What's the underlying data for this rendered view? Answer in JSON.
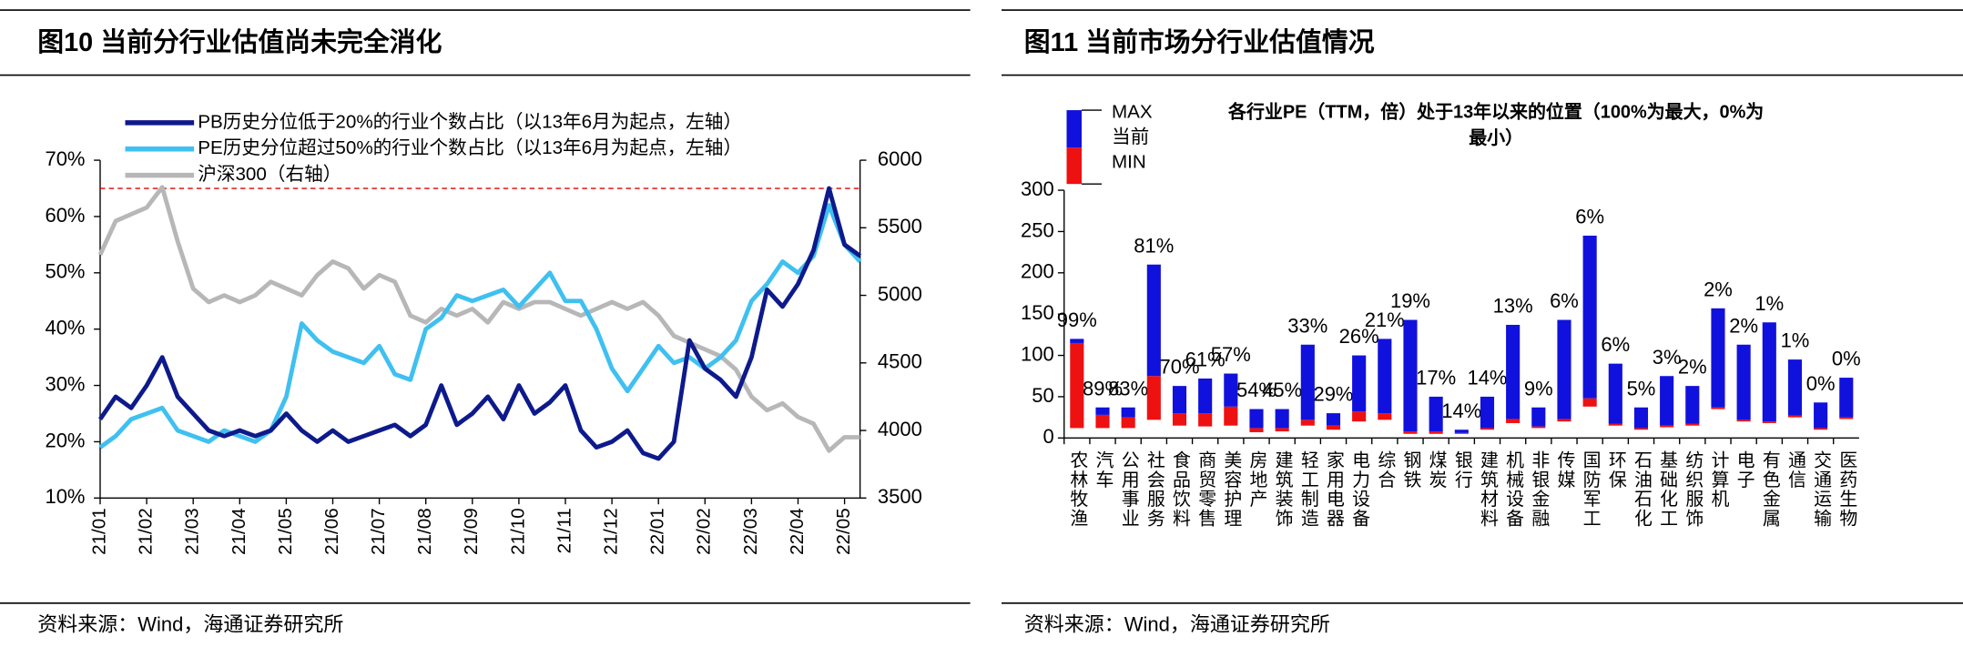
{
  "chart_data": [
    {
      "type": "line",
      "figure": "图10 当前分行业估值尚未完全消化",
      "source": "资料来源：Wind，海通证券研究所",
      "categories": [
        "21/01",
        null,
        null,
        "21/02",
        null,
        null,
        "21/03",
        null,
        null,
        "21/04",
        null,
        null,
        "21/05",
        null,
        null,
        "21/06",
        null,
        null,
        "21/07",
        null,
        null,
        "21/08",
        null,
        null,
        "21/09",
        null,
        null,
        "21/10",
        null,
        null,
        "21/11",
        null,
        null,
        "21/12",
        null,
        null,
        "22/01",
        null,
        null,
        "22/02",
        null,
        null,
        "22/03",
        null,
        null,
        "22/04",
        null,
        null,
        "22/05",
        null
      ],
      "series": [
        {
          "name": "PB历史分位低于20%的行业个数占比（以13年6月为起点，左轴）",
          "color": "#0d1a8c",
          "values": [
            24,
            28,
            26,
            30,
            35,
            28,
            25,
            22,
            21,
            22,
            21,
            22,
            25,
            22,
            20,
            22,
            20,
            21,
            22,
            23,
            21,
            23,
            30,
            23,
            25,
            28,
            24,
            30,
            25,
            27,
            30,
            22,
            19,
            20,
            22,
            18,
            17,
            20,
            38,
            33,
            31,
            28,
            35,
            47,
            44,
            48,
            54,
            65,
            55,
            53
          ]
        },
        {
          "name": "PE历史分位超过50%的行业个数占比（以13年6月为起点，左轴）",
          "color": "#3fc0f0",
          "values": [
            19,
            21,
            24,
            25,
            26,
            22,
            21,
            20,
            22,
            21,
            20,
            22,
            28,
            41,
            38,
            36,
            35,
            34,
            37,
            32,
            31,
            40,
            42,
            46,
            45,
            46,
            47,
            44,
            47,
            50,
            45,
            45,
            40,
            33,
            29,
            33,
            37,
            34,
            35,
            33,
            35,
            38,
            45,
            48,
            52,
            50,
            53,
            62,
            55,
            52
          ]
        },
        {
          "name": "沪深300（右轴）",
          "color": "#b7b7b7",
          "axis": "y2",
          "values": [
            5300,
            5550,
            5600,
            5650,
            5800,
            5400,
            5050,
            4950,
            5000,
            4950,
            5000,
            5100,
            5050,
            5000,
            5150,
            5250,
            5200,
            5050,
            5150,
            5100,
            4850,
            4800,
            4900,
            4850,
            4900,
            4800,
            4950,
            4900,
            4950,
            4950,
            4900,
            4850,
            4900,
            4950,
            4900,
            4950,
            4850,
            4700,
            4650,
            4600,
            4550,
            4450,
            4250,
            4150,
            4200,
            4100,
            4050,
            3850,
            3950,
            3950
          ]
        }
      ],
      "ylim": [
        10,
        70
      ],
      "yticks": [
        {
          "value": 10,
          "label": "10%"
        },
        {
          "value": 20,
          "label": "20%"
        },
        {
          "value": 30,
          "label": "30%"
        },
        {
          "value": 40,
          "label": "40%"
        },
        {
          "value": 50,
          "label": "50%"
        },
        {
          "value": 60,
          "label": "60%"
        },
        {
          "value": 70,
          "label": "70%"
        }
      ],
      "y2lim": [
        3500,
        6000
      ],
      "y2ticks": [
        3500,
        4000,
        4500,
        5000,
        5500,
        6000
      ],
      "hline": {
        "value": 65,
        "color": "#e00000"
      }
    },
    {
      "type": "range_bar",
      "figure": "图11 当前市场分行业估值情况",
      "source": "资料来源：Wind，海通证券研究所",
      "title": "各行业PE（TTM，倍）处于13年以来的位置（100%为最大，0%为最小）",
      "legend": [
        "MAX",
        "当前",
        "MIN"
      ],
      "categories": [
        "农林牧渔",
        "汽车",
        "公用事业",
        "社会服务",
        "食品饮料",
        "商贸零售",
        "美容护理",
        "房地产",
        "建筑装饰",
        "轻工制造",
        "家用电器",
        "电力设备",
        "综合",
        "钢铁",
        "煤炭",
        "银行",
        "建筑材料",
        "机械设备",
        "非银金融",
        "传媒",
        "国防军工",
        "环保",
        "石油石化",
        "基础化工",
        "纺织服饰",
        "计算机",
        "电子",
        "有色金属",
        "通信",
        "交通运输",
        "医药生物"
      ],
      "min": [
        12,
        12,
        12,
        22,
        15,
        14,
        15,
        7,
        8,
        15,
        10,
        20,
        22,
        5,
        5,
        5,
        10,
        18,
        12,
        20,
        38,
        15,
        10,
        13,
        15,
        35,
        20,
        18,
        25,
        10,
        23
      ],
      "current": [
        115,
        28,
        25,
        75,
        30,
        30,
        38,
        12,
        12,
        22,
        15,
        32,
        30,
        8,
        8,
        6,
        12,
        23,
        14,
        23,
        48,
        17,
        12,
        15,
        17,
        37,
        22,
        20,
        27,
        12,
        25
      ],
      "max": [
        120,
        37,
        37,
        210,
        63,
        72,
        78,
        35,
        35,
        113,
        30,
        100,
        120,
        143,
        50,
        10,
        50,
        137,
        37,
        143,
        245,
        90,
        37,
        75,
        63,
        157,
        113,
        140,
        95,
        43,
        73
      ],
      "percentile_labels": [
        "99%",
        "89%",
        "83%",
        "81%",
        "70%",
        "61%",
        "57%",
        "54%",
        "45%",
        "33%",
        "29%",
        "26%",
        "21%",
        "19%",
        "17%",
        "14%",
        "14%",
        "13%",
        "9%",
        "6%",
        "6%",
        "6%",
        "5%",
        "3%",
        "2%",
        "2%",
        "2%",
        "1%",
        "1%",
        "0%",
        "0%"
      ],
      "colors": {
        "lower": "#ee1111",
        "upper": "#1111dd"
      },
      "ylim": [
        0,
        300
      ],
      "yticks": [
        0,
        50,
        100,
        150,
        200,
        250,
        300
      ]
    }
  ]
}
